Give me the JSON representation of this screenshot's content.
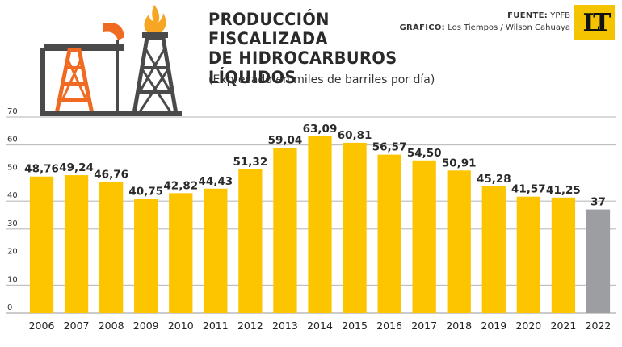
{
  "header": {
    "title_lines": [
      "PRODUCCIÓN",
      "FISCALIZADA",
      "DE HIDROCARBUROS LÍQUIDOS"
    ],
    "subtitle": "(Expresado en miles de barriles por día)",
    "source_label": "FUENTE:",
    "source_value": "YPFB",
    "graphic_label": "GRÁFICO:",
    "graphic_value": "Los Tiempos / Wilson Cahuaya",
    "logo_text": "LT"
  },
  "colors": {
    "bar": "#fcc500",
    "highlight_bar": "#9d9ea1",
    "grid": "#9a9a9a",
    "derrick_orange": "#f06a22",
    "derrick_dark": "#4a4a4a",
    "flame": "#f6a623"
  },
  "chart_data": {
    "type": "bar",
    "title": "PRODUCCIÓN FISCALIZADA DE HIDROCARBUROS LÍQUIDOS",
    "subtitle": "(Expresado en miles de barriles por día)",
    "categories": [
      "2006",
      "2007",
      "2008",
      "2009",
      "2010",
      "2011",
      "2012",
      "2013",
      "2014",
      "2015",
      "2016",
      "2017",
      "2018",
      "2019",
      "2020",
      "2021",
      "2022"
    ],
    "values": [
      48.76,
      49.24,
      46.76,
      40.75,
      42.82,
      44.43,
      51.32,
      59.04,
      63.09,
      60.81,
      56.57,
      54.5,
      50.91,
      45.28,
      41.57,
      41.25,
      37
    ],
    "value_labels": [
      "48,76",
      "49,24",
      "46,76",
      "40,75",
      "42,82",
      "44,43",
      "51,32",
      "59,04",
      "63,09",
      "60,81",
      "56,57",
      "54,50",
      "50,91",
      "45,28",
      "41,57",
      "41,25",
      "37"
    ],
    "highlight_index": 16,
    "ylim": [
      0,
      70
    ],
    "yticks": [
      0,
      10,
      20,
      30,
      40,
      50,
      60,
      70
    ],
    "grid": true,
    "xlabel": "",
    "ylabel": ""
  }
}
